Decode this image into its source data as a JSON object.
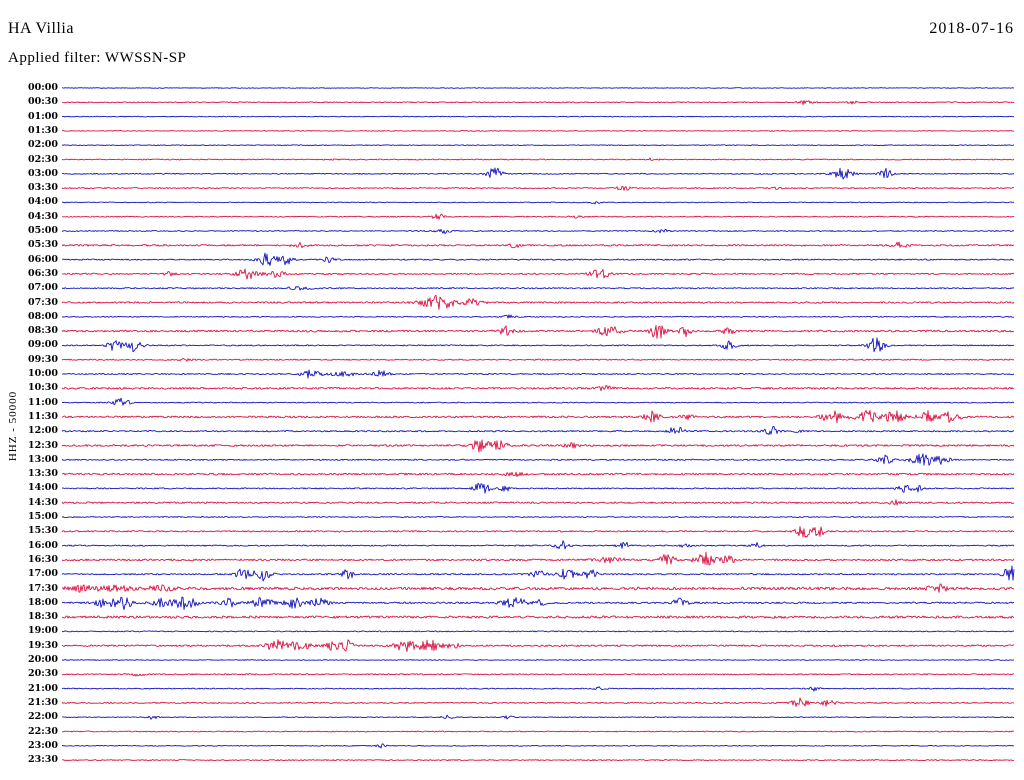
{
  "header": {
    "station": "HA Villia",
    "date": "2018-07-16",
    "filter_label": "Applied filter: WWSSN-SP"
  },
  "colors": {
    "blue": "#1414bE",
    "red": "#d81442"
  },
  "chart_data": {
    "type": "line",
    "title": "HA Villia",
    "subtitle": "Applied filter: WWSSN-SP",
    "date": "2018-07-16",
    "ylabel": "HHZ - 50000",
    "x_axis": "30-minute helicorder rows, each row spans 30 minutes",
    "legend_position": "none",
    "grid": false,
    "event_fields": [
      "position_fraction",
      "amplitude_px",
      "width_fraction"
    ],
    "rows": [
      {
        "time": "00:00",
        "color": "blue",
        "noise": 0.35,
        "events": []
      },
      {
        "time": "00:30",
        "color": "red",
        "noise": 0.5,
        "events": [
          [
            0.78,
            2,
            0.006
          ],
          [
            0.83,
            1.5,
            0.004
          ]
        ]
      },
      {
        "time": "01:00",
        "color": "blue",
        "noise": 0.4,
        "events": []
      },
      {
        "time": "01:30",
        "color": "red",
        "noise": 0.4,
        "events": []
      },
      {
        "time": "02:00",
        "color": "blue",
        "noise": 0.4,
        "events": []
      },
      {
        "time": "02:30",
        "color": "red",
        "noise": 0.5,
        "events": [
          [
            0.285,
            1.5,
            0.004
          ],
          [
            0.62,
            1.5,
            0.004
          ]
        ]
      },
      {
        "time": "03:00",
        "color": "blue",
        "noise": 0.5,
        "events": [
          [
            0.455,
            6,
            0.006
          ],
          [
            0.82,
            6,
            0.007
          ],
          [
            0.865,
            5,
            0.005
          ]
        ]
      },
      {
        "time": "03:30",
        "color": "red",
        "noise": 0.55,
        "events": [
          [
            0.59,
            2.5,
            0.005
          ],
          [
            0.75,
            1.5,
            0.004
          ]
        ]
      },
      {
        "time": "04:00",
        "color": "blue",
        "noise": 0.4,
        "events": [
          [
            0.56,
            1.5,
            0.004
          ]
        ]
      },
      {
        "time": "04:30",
        "color": "red",
        "noise": 0.5,
        "events": [
          [
            0.395,
            3,
            0.004
          ],
          [
            0.54,
            1.5,
            0.004
          ]
        ]
      },
      {
        "time": "05:00",
        "color": "blue",
        "noise": 0.5,
        "events": [
          [
            0.4,
            2.5,
            0.005
          ],
          [
            0.63,
            2,
            0.005
          ]
        ]
      },
      {
        "time": "05:30",
        "color": "red",
        "noise": 0.8,
        "events": [
          [
            0.25,
            2,
            0.006
          ],
          [
            0.475,
            2,
            0.005
          ],
          [
            0.88,
            2.5,
            0.006
          ]
        ]
      },
      {
        "time": "06:00",
        "color": "blue",
        "noise": 0.6,
        "events": [
          [
            0.215,
            6.5,
            0.007
          ],
          [
            0.235,
            5,
            0.005
          ],
          [
            0.28,
            2.5,
            0.004
          ]
        ]
      },
      {
        "time": "06:30",
        "color": "red",
        "noise": 0.7,
        "events": [
          [
            0.115,
            2,
            0.005
          ],
          [
            0.195,
            5,
            0.008
          ],
          [
            0.225,
            3.5,
            0.006
          ],
          [
            0.565,
            4.5,
            0.007
          ]
        ]
      },
      {
        "time": "07:00",
        "color": "blue",
        "noise": 0.6,
        "events": [
          [
            0.25,
            1.5,
            0.01
          ]
        ]
      },
      {
        "time": "07:30",
        "color": "red",
        "noise": 0.8,
        "events": [
          [
            0.395,
            6.5,
            0.012
          ],
          [
            0.43,
            3,
            0.008
          ]
        ]
      },
      {
        "time": "08:00",
        "color": "blue",
        "noise": 0.5,
        "events": [
          [
            0.47,
            1.5,
            0.005
          ]
        ]
      },
      {
        "time": "08:30",
        "color": "red",
        "noise": 0.9,
        "events": [
          [
            0.465,
            4.5,
            0.006
          ],
          [
            0.575,
            5,
            0.008
          ],
          [
            0.625,
            8,
            0.006
          ],
          [
            0.655,
            5,
            0.004
          ],
          [
            0.7,
            3,
            0.005
          ]
        ]
      },
      {
        "time": "09:00",
        "color": "blue",
        "noise": 0.6,
        "events": [
          [
            0.055,
            5,
            0.005
          ],
          [
            0.075,
            6,
            0.006
          ],
          [
            0.7,
            4.5,
            0.005
          ],
          [
            0.855,
            7.5,
            0.006
          ]
        ]
      },
      {
        "time": "09:30",
        "color": "red",
        "noise": 0.6,
        "events": [
          [
            0.13,
            1.5,
            0.004
          ]
        ]
      },
      {
        "time": "10:00",
        "color": "blue",
        "noise": 0.6,
        "events": [
          [
            0.26,
            3.5,
            0.008
          ],
          [
            0.295,
            2,
            0.01
          ],
          [
            0.335,
            3.5,
            0.006
          ]
        ]
      },
      {
        "time": "10:30",
        "color": "red",
        "noise": 0.9,
        "events": [
          [
            0.57,
            2,
            0.006
          ]
        ]
      },
      {
        "time": "11:00",
        "color": "blue",
        "noise": 0.5,
        "events": [
          [
            0.062,
            4.5,
            0.006
          ]
        ]
      },
      {
        "time": "11:30",
        "color": "red",
        "noise": 0.9,
        "events": [
          [
            0.62,
            5.5,
            0.006
          ],
          [
            0.655,
            3,
            0.005
          ],
          [
            0.81,
            6,
            0.008
          ],
          [
            0.845,
            6.5,
            0.008
          ],
          [
            0.875,
            6,
            0.007
          ],
          [
            0.91,
            5.5,
            0.007
          ],
          [
            0.935,
            6,
            0.006
          ]
        ]
      },
      {
        "time": "12:00",
        "color": "blue",
        "noise": 0.7,
        "events": [
          [
            0.645,
            5.5,
            0.005
          ],
          [
            0.745,
            5.5,
            0.005
          ],
          [
            0.775,
            2,
            0.004
          ]
        ]
      },
      {
        "time": "12:30",
        "color": "red",
        "noise": 0.9,
        "events": [
          [
            0.44,
            6,
            0.007
          ],
          [
            0.46,
            5,
            0.005
          ],
          [
            0.535,
            2.5,
            0.005
          ]
        ]
      },
      {
        "time": "13:00",
        "color": "blue",
        "noise": 0.6,
        "events": [
          [
            0.865,
            4.5,
            0.006
          ],
          [
            0.905,
            6,
            0.009
          ],
          [
            0.925,
            4,
            0.005
          ]
        ]
      },
      {
        "time": "13:30",
        "color": "red",
        "noise": 0.9,
        "events": [
          [
            0.475,
            2,
            0.006
          ]
        ]
      },
      {
        "time": "14:00",
        "color": "blue",
        "noise": 0.6,
        "events": [
          [
            0.44,
            6,
            0.006
          ],
          [
            0.465,
            3,
            0.004
          ],
          [
            0.885,
            3.5,
            0.005
          ],
          [
            0.9,
            3,
            0.004
          ]
        ]
      },
      {
        "time": "14:30",
        "color": "red",
        "noise": 0.8,
        "events": [
          [
            0.875,
            2.5,
            0.005
          ]
        ]
      },
      {
        "time": "15:00",
        "color": "blue",
        "noise": 0.5,
        "events": []
      },
      {
        "time": "15:30",
        "color": "red",
        "noise": 0.7,
        "events": [
          [
            0.78,
            6.5,
            0.006
          ],
          [
            0.795,
            5,
            0.004
          ]
        ]
      },
      {
        "time": "16:00",
        "color": "blue",
        "noise": 0.6,
        "events": [
          [
            0.525,
            4.5,
            0.005
          ],
          [
            0.59,
            3.5,
            0.005
          ],
          [
            0.655,
            2,
            0.004
          ],
          [
            0.73,
            3.5,
            0.004
          ]
        ]
      },
      {
        "time": "16:30",
        "color": "red",
        "noise": 0.9,
        "events": [
          [
            0.575,
            2.5,
            0.01
          ],
          [
            0.635,
            5,
            0.006
          ],
          [
            0.675,
            7,
            0.007
          ],
          [
            0.7,
            4,
            0.005
          ]
        ]
      },
      {
        "time": "17:00",
        "color": "blue",
        "noise": 0.7,
        "events": [
          [
            0.19,
            5.5,
            0.005
          ],
          [
            0.21,
            6.5,
            0.006
          ],
          [
            0.3,
            4.5,
            0.005
          ],
          [
            0.5,
            4.5,
            0.005
          ],
          [
            0.53,
            5.5,
            0.006
          ],
          [
            0.555,
            4.5,
            0.005
          ],
          [
            0.995,
            11,
            0.004
          ]
        ]
      },
      {
        "time": "17:30",
        "color": "red",
        "noise": 1.4,
        "events": [
          [
            0.02,
            2.5,
            0.01
          ],
          [
            0.055,
            3,
            0.01
          ],
          [
            0.1,
            2.5,
            0.01
          ],
          [
            0.92,
            4,
            0.006
          ]
        ]
      },
      {
        "time": "18:00",
        "color": "blue",
        "noise": 0.8,
        "events": [
          [
            0.045,
            5,
            0.007
          ],
          [
            0.065,
            6,
            0.006
          ],
          [
            0.105,
            4,
            0.008
          ],
          [
            0.13,
            6.5,
            0.008
          ],
          [
            0.175,
            4,
            0.006
          ],
          [
            0.21,
            5,
            0.008
          ],
          [
            0.245,
            5.5,
            0.007
          ],
          [
            0.27,
            5,
            0.006
          ],
          [
            0.475,
            5.5,
            0.008
          ],
          [
            0.5,
            3,
            0.005
          ],
          [
            0.65,
            4,
            0.006
          ]
        ]
      },
      {
        "time": "18:30",
        "color": "red",
        "noise": 1.2,
        "events": []
      },
      {
        "time": "19:00",
        "color": "blue",
        "noise": 0.5,
        "events": []
      },
      {
        "time": "19:30",
        "color": "red",
        "noise": 0.8,
        "events": [
          [
            0.225,
            5.5,
            0.008
          ],
          [
            0.25,
            5,
            0.007
          ],
          [
            0.285,
            4.5,
            0.006
          ],
          [
            0.3,
            5,
            0.005
          ],
          [
            0.36,
            5.5,
            0.007
          ],
          [
            0.385,
            6,
            0.008
          ],
          [
            0.41,
            3,
            0.005
          ]
        ]
      },
      {
        "time": "20:00",
        "color": "blue",
        "noise": 0.4,
        "events": []
      },
      {
        "time": "20:30",
        "color": "red",
        "noise": 0.6,
        "events": [
          [
            0.08,
            1.5,
            0.005
          ]
        ]
      },
      {
        "time": "21:00",
        "color": "blue",
        "noise": 0.5,
        "events": [
          [
            0.565,
            1.5,
            0.004
          ],
          [
            0.79,
            2,
            0.004
          ]
        ]
      },
      {
        "time": "21:30",
        "color": "red",
        "noise": 0.6,
        "events": [
          [
            0.775,
            4.5,
            0.006
          ],
          [
            0.805,
            3.5,
            0.005
          ]
        ]
      },
      {
        "time": "22:00",
        "color": "blue",
        "noise": 0.4,
        "events": [
          [
            0.095,
            2,
            0.004
          ],
          [
            0.405,
            2,
            0.004
          ],
          [
            0.47,
            2,
            0.004
          ]
        ]
      },
      {
        "time": "22:30",
        "color": "red",
        "noise": 0.5,
        "events": []
      },
      {
        "time": "23:00",
        "color": "blue",
        "noise": 0.4,
        "events": [
          [
            0.335,
            1.8,
            0.004
          ]
        ]
      },
      {
        "time": "23:30",
        "color": "red",
        "noise": 0.5,
        "events": []
      }
    ]
  }
}
